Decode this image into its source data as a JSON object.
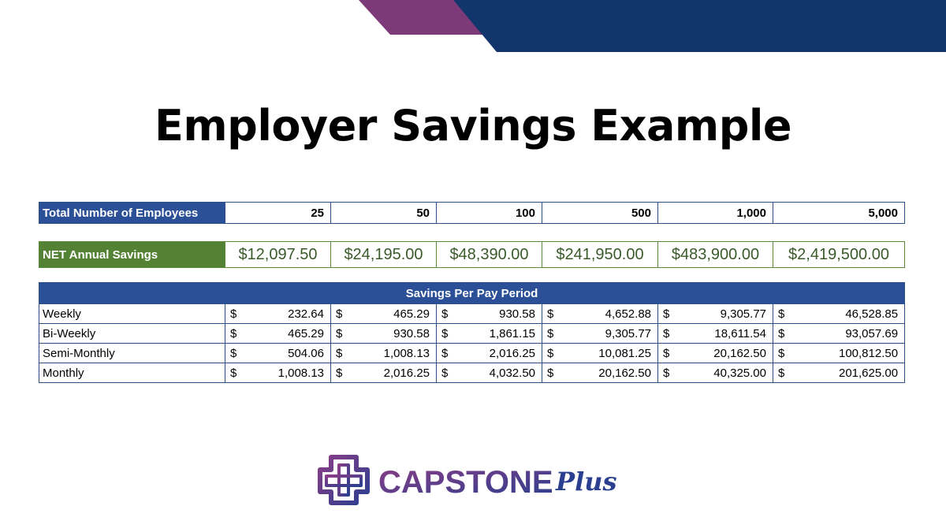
{
  "title": "Employer Savings Example",
  "employees": {
    "label": "Total Number of Employees",
    "values": [
      "25",
      "50",
      "100",
      "500",
      "1,000",
      "5,000"
    ]
  },
  "net_savings": {
    "label": "NET Annual Savings",
    "values": [
      "$12,097.50",
      "$24,195.00",
      "$48,390.00",
      "$241,950.00",
      "$483,900.00",
      "$2,419,500.00"
    ]
  },
  "pay_period": {
    "header": "Savings Per Pay Period",
    "currency_symbol": "$",
    "rows": [
      {
        "label": "Weekly",
        "values": [
          "232.64",
          "465.29",
          "930.58",
          "4,652.88",
          "9,305.77",
          "46,528.85"
        ]
      },
      {
        "label": "Bi-Weekly",
        "values": [
          "465.29",
          "930.58",
          "1,861.15",
          "9,305.77",
          "18,611.54",
          "93,057.69"
        ]
      },
      {
        "label": "Semi-Monthly",
        "values": [
          "504.06",
          "1,008.13",
          "2,016.25",
          "10,081.25",
          "20,162.50",
          "100,812.50"
        ]
      },
      {
        "label": "Monthly",
        "values": [
          "1,008.13",
          "2,016.25",
          "4,032.50",
          "20,162.50",
          "40,325.00",
          "201,625.00"
        ]
      }
    ]
  },
  "logo": {
    "text_main": "CAPSTONE",
    "text_script": "Plus"
  },
  "colors": {
    "navy": "#12356b",
    "purple": "#7d3a78",
    "header_blue": "#2b5097",
    "green": "#548235"
  }
}
